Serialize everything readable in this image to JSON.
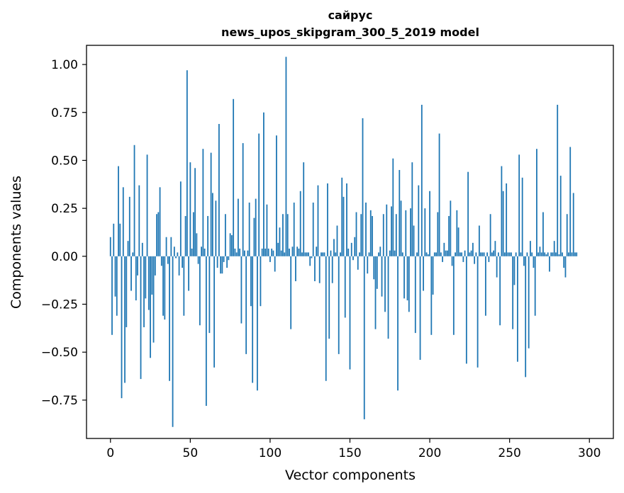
{
  "chart_data": {
    "type": "bar",
    "title": "сайрус",
    "subtitle": "news_upos_skipgram_300_5_2019 model",
    "xlabel": "Vector components",
    "ylabel": "Components values",
    "xlim": [
      -15,
      315
    ],
    "ylim": [
      -0.95,
      1.1
    ],
    "xticks": [
      0,
      50,
      100,
      150,
      200,
      250,
      300
    ],
    "yticks": [
      -0.75,
      -0.5,
      -0.25,
      0.0,
      0.25,
      0.5,
      0.75,
      1.0
    ],
    "ytick_labels": [
      "−0.75",
      "−0.50",
      "−0.25",
      "0.00",
      "0.25",
      "0.50",
      "0.75",
      "1.00"
    ],
    "bar_color": "#1f77b4",
    "grid": false,
    "values": [
      0.1,
      -0.41,
      0.17,
      -0.21,
      -0.31,
      0.47,
      0.17,
      -0.74,
      0.36,
      -0.66,
      -0.37,
      0.08,
      0.31,
      -0.18,
      0.02,
      0.58,
      -0.23,
      -0.1,
      0.37,
      -0.64,
      0.07,
      -0.37,
      -0.22,
      0.53,
      -0.28,
      -0.53,
      -0.2,
      -0.45,
      -0.1,
      0.22,
      0.23,
      0.36,
      -0.05,
      -0.31,
      -0.33,
      0.1,
      -0.04,
      -0.65,
      0.1,
      -0.89,
      0.05,
      -0.01,
      0.02,
      -0.1,
      0.39,
      -0.06,
      -0.31,
      0.21,
      0.97,
      -0.18,
      0.49,
      0.04,
      0.23,
      0.46,
      0.12,
      -0.04,
      -0.36,
      0.05,
      0.56,
      0.04,
      -0.78,
      0.21,
      -0.4,
      0.54,
      0.33,
      -0.58,
      0.29,
      -0.06,
      0.69,
      -0.09,
      -0.09,
      -0.03,
      0.22,
      -0.06,
      -0.02,
      0.12,
      0.11,
      0.82,
      0.04,
      0.02,
      0.3,
      0.04,
      -0.35,
      0.59,
      0.03,
      -0.51,
      0.03,
      0.28,
      -0.26,
      -0.66,
      0.2,
      0.3,
      -0.7,
      0.64,
      -0.26,
      0.04,
      0.75,
      0.04,
      0.27,
      0.04,
      -0.03,
      0.04,
      0.03,
      -0.08,
      0.63,
      0.07,
      0.15,
      0.03,
      0.22,
      0.02,
      1.04,
      0.22,
      0.04,
      -0.38,
      0.05,
      0.28,
      -0.13,
      0.05,
      0.04,
      0.34,
      0.02,
      0.49,
      0.02,
      0.02,
      0.02,
      -0.05,
      -0.01,
      0.28,
      -0.13,
      0.05,
      0.37,
      -0.14,
      0.02,
      0.02,
      0.02,
      -0.65,
      0.38,
      -0.43,
      0.03,
      -0.14,
      0.09,
      0.02,
      0.16,
      -0.51,
      0.02,
      0.41,
      0.31,
      -0.32,
      0.38,
      0.04,
      -0.59,
      0.07,
      -0.02,
      0.1,
      0.23,
      -0.07,
      0.02,
      0.22,
      0.72,
      -0.85,
      0.28,
      -0.09,
      0.02,
      0.24,
      0.21,
      -0.12,
      -0.38,
      -0.17,
      0.02,
      0.05,
      -0.21,
      0.22,
      -0.29,
      0.27,
      -0.43,
      0.03,
      0.26,
      0.51,
      0.03,
      0.22,
      -0.7,
      0.45,
      0.29,
      0.02,
      -0.22,
      0.24,
      -0.23,
      -0.29,
      0.25,
      0.49,
      0.16,
      -0.4,
      0.02,
      0.37,
      -0.54,
      0.79,
      -0.18,
      0.25,
      0.02,
      0.01,
      0.34,
      -0.41,
      -0.2,
      0.02,
      0.02,
      0.23,
      0.64,
      0.02,
      -0.03,
      0.07,
      0.03,
      0.03,
      0.21,
      0.29,
      -0.05,
      -0.41,
      0.02,
      0.24,
      0.15,
      0.02,
      0.02,
      -0.03,
      0.03,
      -0.56,
      0.44,
      0.02,
      0.03,
      0.07,
      -0.04,
      0.02,
      -0.58,
      0.16,
      0.02,
      0.02,
      0.02,
      -0.31,
      0.02,
      -0.03,
      0.22,
      0.02,
      0.03,
      0.08,
      -0.11,
      0.02,
      -0.36,
      0.47,
      0.34,
      0.02,
      0.38,
      0.02,
      0.02,
      0.02,
      -0.38,
      -0.15,
      0.02,
      -0.55,
      0.53,
      0.02,
      0.41,
      -0.05,
      -0.63,
      0.02,
      -0.48,
      0.08,
      0.02,
      -0.06,
      -0.31,
      0.56,
      0.02,
      0.05,
      0.02,
      0.23,
      0.02,
      0.01,
      0.02,
      -0.08,
      0.02,
      0.02,
      0.08,
      0.02,
      0.79,
      0.01,
      0.42,
      0.02,
      -0.06,
      -0.11,
      0.22,
      0.02,
      0.57,
      0.02,
      0.33,
      0.02,
      0.02
    ]
  }
}
